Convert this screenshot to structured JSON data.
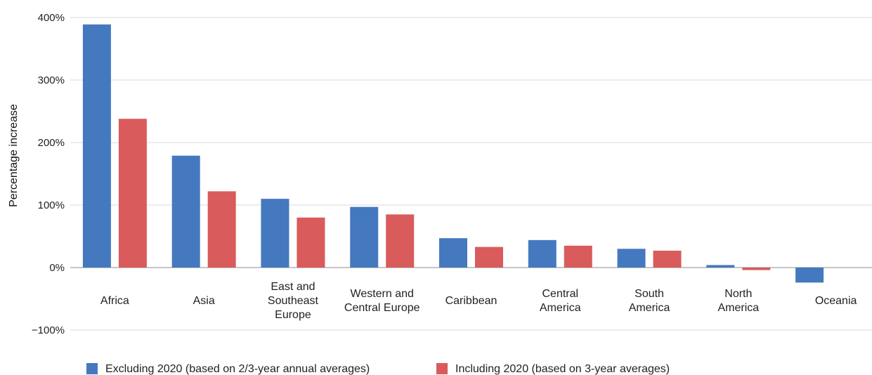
{
  "chart_data": {
    "type": "bar",
    "ylabel": "Percentage increase",
    "ylim": [
      -100,
      400
    ],
    "yticks": [
      400,
      300,
      200,
      100,
      0,
      -100
    ],
    "ytick_labels": [
      "400%",
      "300%",
      "200%",
      "100%",
      "0%",
      "−100%"
    ],
    "grid": true,
    "legend_position": "bottom",
    "categories": [
      [
        "Africa"
      ],
      [
        "Asia"
      ],
      [
        "East and",
        "Southeast",
        "Europe"
      ],
      [
        "Western and",
        "Central Europe"
      ],
      [
        "Caribbean"
      ],
      [
        "Central",
        "America"
      ],
      [
        "South",
        "America"
      ],
      [
        "North",
        "America"
      ],
      [
        "Oceania"
      ]
    ],
    "series": [
      {
        "name": "Excluding 2020 (based on 2/3-year annual averages)",
        "color": "#4479c0",
        "values": [
          389,
          179,
          110,
          97,
          47,
          44,
          30,
          4,
          -24
        ]
      },
      {
        "name": "Including 2020 (based on 3-year averages)",
        "color": "#d95b5b",
        "values": [
          238,
          122,
          80,
          85,
          33,
          35,
          27,
          -4,
          0
        ]
      }
    ]
  }
}
